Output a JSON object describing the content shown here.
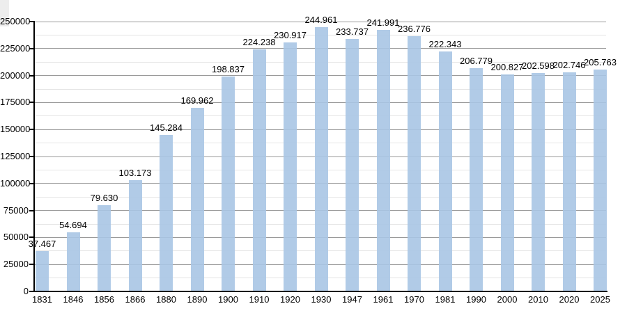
{
  "page": {
    "background": "#ffffff"
  },
  "chart_data": {
    "type": "bar",
    "title": "",
    "xlabel": "",
    "ylabel": "",
    "categories": [
      "1831",
      "1846",
      "1856",
      "1866",
      "1880",
      "1890",
      "1900",
      "1910",
      "1920",
      "1930",
      "1947",
      "1961",
      "1970",
      "1981",
      "1990",
      "2000",
      "2010",
      "2020",
      "2025"
    ],
    "values": [
      37467,
      54694,
      79630,
      103173,
      145284,
      169962,
      198837,
      224238,
      230917,
      244961,
      233737,
      241991,
      236776,
      222343,
      206779,
      200827,
      202598,
      202746,
      205763
    ],
    "bar_labels": [
      "37.467",
      "54.694",
      "79.630",
      "103.173",
      "145.284",
      "169.962",
      "198.837",
      "224.238",
      "230.917",
      "244.961",
      "233.737",
      "241.991",
      "236.776",
      "222.343",
      "206.779",
      "200.827",
      "202.598",
      "202.746",
      "205.763"
    ],
    "ylim": [
      0,
      250000
    ],
    "y_major_step": 25000,
    "y_minor_step": 12500,
    "y_tick_labels": [
      "0",
      "25000",
      "50000",
      "75000",
      "100000",
      "125000",
      "150000",
      "175000",
      "200000",
      "225000",
      "250000"
    ],
    "grid": true,
    "legend": false,
    "colors": {
      "bar": "#b3cbe3",
      "grid_major": "#999999",
      "grid_minor": "#e4e4e4",
      "axis": "#000000",
      "text": "#000000"
    }
  }
}
